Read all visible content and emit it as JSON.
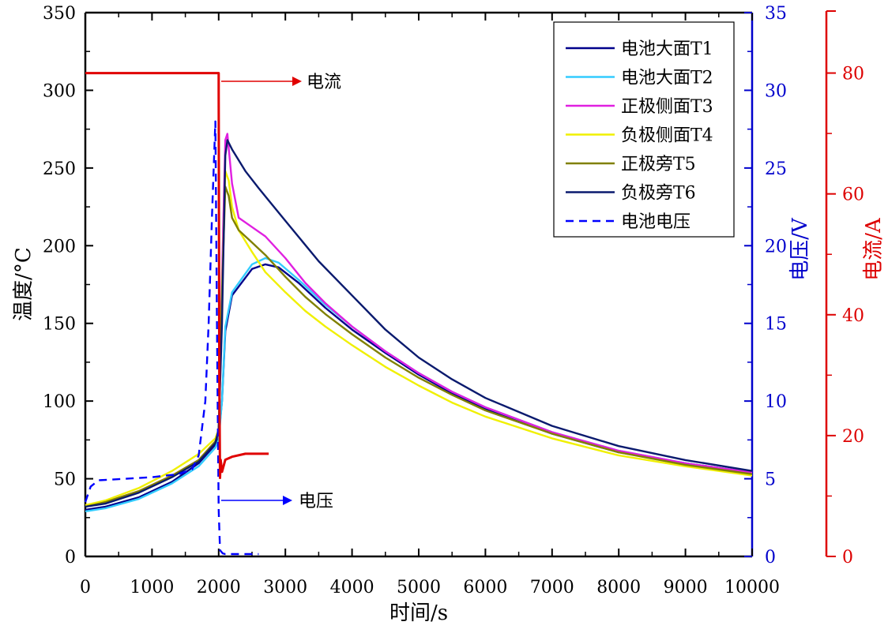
{
  "chart_data": {
    "type": "line",
    "xlabel": "时间/s",
    "ylabel_left": "温度/°C",
    "ylabel_right1": "电压/V",
    "ylabel_right2": "电流/A",
    "xlim": [
      0,
      10000
    ],
    "ylim_left": [
      0,
      350
    ],
    "ylim_right1": [
      0,
      35
    ],
    "ylim_right2": [
      0,
      90
    ],
    "x_ticks": [
      "0",
      "1000",
      "2000",
      "3000",
      "4000",
      "5000",
      "6000",
      "7000",
      "8000",
      "9000",
      "10000"
    ],
    "y_left_ticks": [
      "0",
      "50",
      "100",
      "150",
      "200",
      "250",
      "300",
      "350"
    ],
    "y_right1_ticks": [
      "0",
      "5",
      "10",
      "15",
      "20",
      "25",
      "30",
      "35"
    ],
    "y_right2_ticks": [
      "0",
      "20",
      "40",
      "60",
      "80"
    ],
    "grid": false,
    "legend_position": "top-right",
    "annotations": [
      {
        "text": "电流",
        "x": 2000,
        "y": 31,
        "axis": "right1"
      },
      {
        "text": "电压",
        "x": 2000,
        "y": 7,
        "axis": "right1"
      }
    ],
    "colors": {
      "T1": "#00008b",
      "T2": "#33ccff",
      "T3": "#e020e0",
      "T4": "#f0f000",
      "T5": "#808000",
      "T6": "#0a1a6e",
      "voltage": "#0000ff",
      "current": "#e00000",
      "axis_right1": "#0000cc",
      "axis_right2": "#dd0000"
    },
    "series": [
      {
        "name": "电池大面T1",
        "axis": "left",
        "key": "T1",
        "style": "solid",
        "x": [
          0,
          300,
          800,
          1300,
          1700,
          1950,
          2000,
          2050,
          2100,
          2200,
          2500,
          2700,
          2900,
          3200,
          3600,
          4000,
          4500,
          5000,
          5500,
          6000,
          7000,
          8000,
          9000,
          10000
        ],
        "y": [
          30,
          32,
          38,
          48,
          60,
          72,
          78,
          100,
          145,
          168,
          185,
          188,
          186,
          176,
          160,
          146,
          131,
          117,
          105,
          95,
          79,
          67,
          60,
          54
        ]
      },
      {
        "name": "电池大面T2",
        "axis": "left",
        "key": "T2",
        "style": "solid",
        "x": [
          0,
          300,
          800,
          1300,
          1700,
          1950,
          2000,
          2050,
          2100,
          2200,
          2500,
          2700,
          2900,
          3200,
          3600,
          4000,
          4500,
          5000,
          5500,
          6000,
          7000,
          8000,
          9000,
          10000
        ],
        "y": [
          29,
          31,
          37,
          47,
          58,
          70,
          75,
          100,
          148,
          170,
          188,
          192,
          189,
          178,
          162,
          148,
          132,
          118,
          106,
          96,
          80,
          68,
          60,
          54
        ]
      },
      {
        "name": "正极侧面T3",
        "axis": "left",
        "key": "T3",
        "style": "solid",
        "x": [
          0,
          300,
          800,
          1300,
          1700,
          1950,
          2000,
          2050,
          2100,
          2130,
          2200,
          2300,
          2500,
          2700,
          3000,
          3300,
          3600,
          4000,
          4500,
          5000,
          5500,
          6000,
          7000,
          8000,
          9000,
          10000
        ],
        "y": [
          33,
          35,
          42,
          52,
          62,
          74,
          80,
          180,
          268,
          272,
          240,
          218,
          212,
          206,
          192,
          176,
          163,
          148,
          132,
          118,
          106,
          96,
          80,
          68,
          60,
          54
        ]
      },
      {
        "name": "负极侧面T4",
        "axis": "left",
        "key": "T4",
        "style": "solid",
        "x": [
          0,
          300,
          800,
          1300,
          1700,
          1950,
          2000,
          2050,
          2100,
          2150,
          2200,
          2300,
          2500,
          2700,
          3000,
          3300,
          3600,
          4000,
          4500,
          5000,
          5500,
          6000,
          7000,
          8000,
          9000,
          10000
        ],
        "y": [
          33,
          36,
          44,
          55,
          66,
          76,
          82,
          170,
          248,
          242,
          225,
          210,
          196,
          183,
          170,
          158,
          148,
          136,
          122,
          110,
          99,
          90,
          76,
          65,
          58,
          52
        ]
      },
      {
        "name": "正极旁T5",
        "axis": "left",
        "key": "T5",
        "style": "solid",
        "x": [
          0,
          300,
          800,
          1300,
          1700,
          1950,
          2000,
          2050,
          2100,
          2150,
          2200,
          2300,
          2500,
          2700,
          3000,
          3300,
          3600,
          4000,
          4500,
          5000,
          5500,
          6000,
          7000,
          8000,
          9000,
          10000
        ],
        "y": [
          32,
          35,
          42,
          52,
          62,
          74,
          80,
          170,
          238,
          232,
          218,
          210,
          202,
          194,
          180,
          167,
          156,
          143,
          128,
          115,
          104,
          94,
          79,
          67,
          59,
          53
        ]
      },
      {
        "name": "负极旁T6",
        "axis": "left",
        "key": "T6",
        "style": "solid",
        "x": [
          0,
          300,
          800,
          1300,
          1700,
          1950,
          2000,
          2050,
          2100,
          2130,
          2200,
          2400,
          2600,
          3000,
          3500,
          4000,
          4500,
          5000,
          5500,
          6000,
          7000,
          8000,
          9000,
          10000
        ],
        "y": [
          32,
          34,
          41,
          51,
          61,
          73,
          82,
          150,
          258,
          268,
          262,
          248,
          237,
          216,
          190,
          168,
          146,
          128,
          114,
          102,
          84,
          71,
          62,
          55
        ]
      },
      {
        "name": "电池电压",
        "axis": "right1",
        "key": "voltage",
        "style": "dashed",
        "x": [
          0,
          80,
          200,
          600,
          1000,
          1400,
          1600,
          1700,
          1800,
          1850,
          1900,
          1950,
          1980,
          2000,
          2020,
          2060,
          2100,
          2300,
          2600
        ],
        "y": [
          3.5,
          4.5,
          4.9,
          5.0,
          5.1,
          5.3,
          5.6,
          6.5,
          10,
          15,
          22,
          28,
          12,
          3.0,
          0.4,
          0.2,
          0.15,
          0.15,
          0.15
        ]
      },
      {
        "name": "电流",
        "axis": "right2",
        "key": "current",
        "style": "solid",
        "x": [
          0,
          2000,
          2000,
          2010,
          2020,
          2030,
          2050,
          2100,
          2200,
          2400,
          2600,
          2750
        ],
        "y": [
          80,
          80,
          77,
          30,
          13,
          16,
          14,
          16,
          16.5,
          17,
          17,
          17
        ]
      }
    ]
  }
}
